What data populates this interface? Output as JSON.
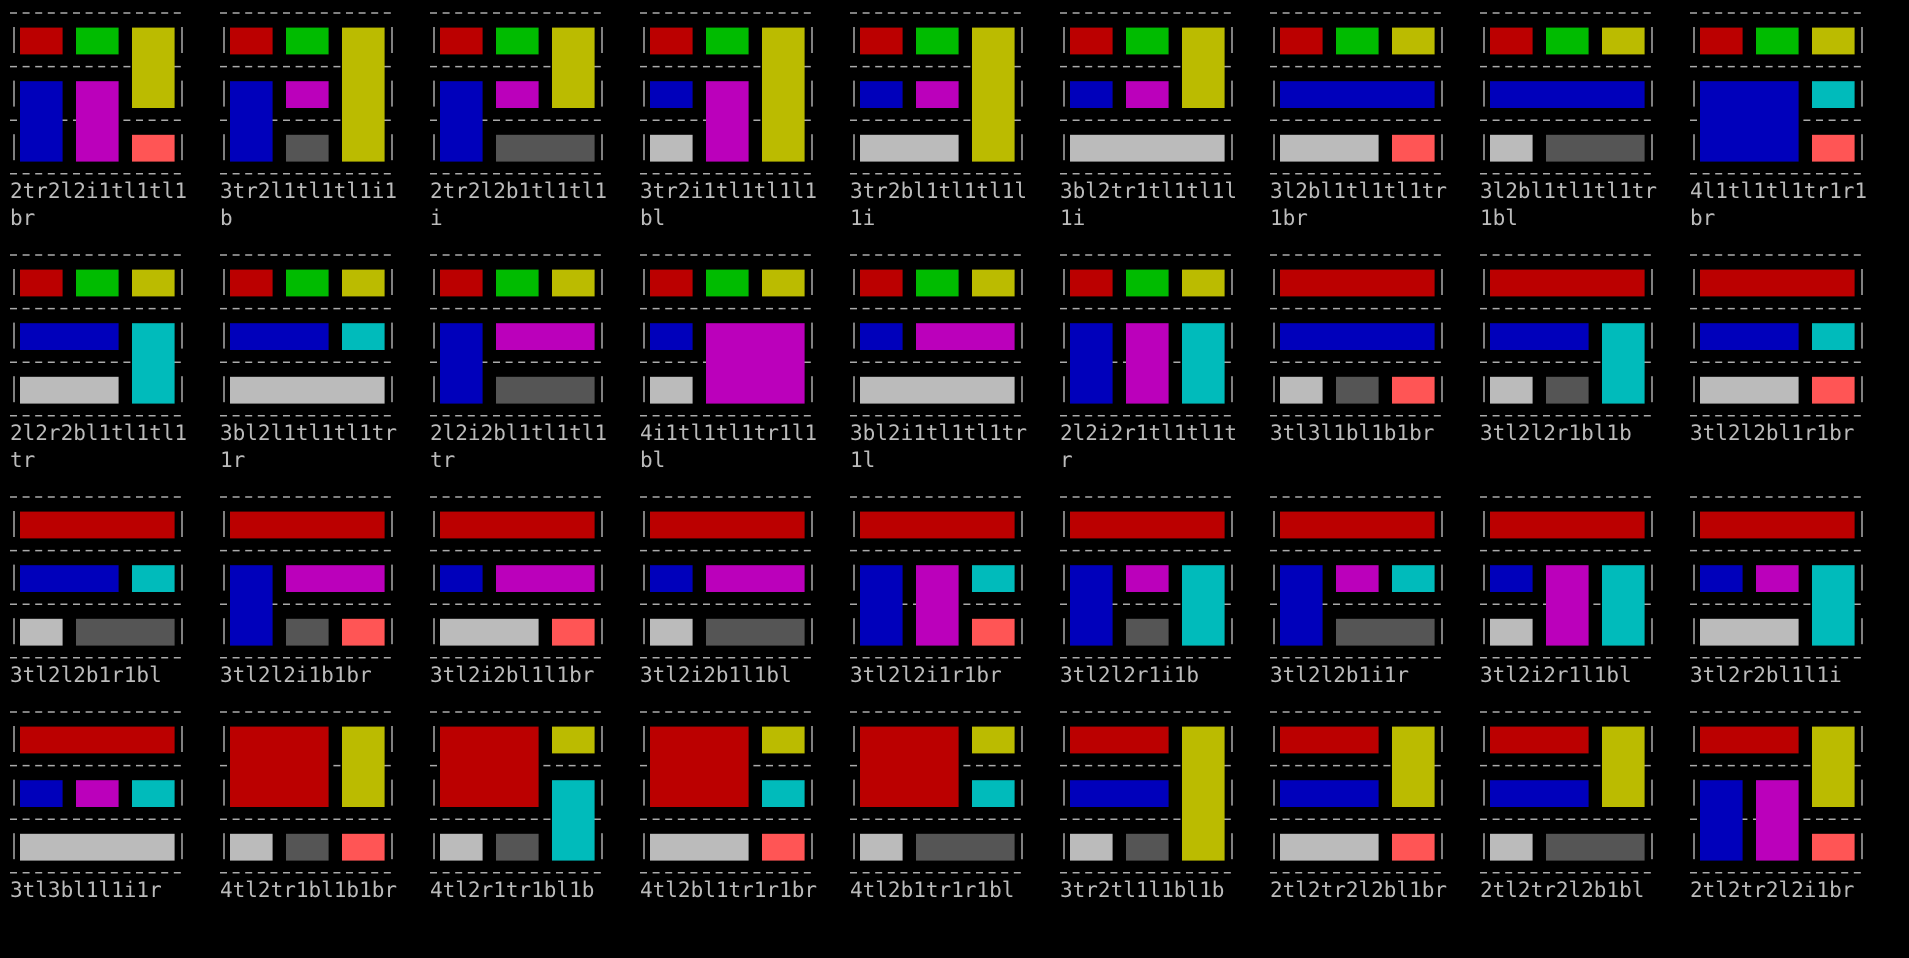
{
  "cells": [
    "2tr2l2i1tl1tl1br",
    "3tr2l1tl1tl1i1b",
    "2tr2l2b1tl1tl1i",
    "3tr2i1tl1tl1l1bl",
    "3tr2bl1tl1tl1l1i",
    "3bl2tr1tl1tl1l1i",
    "3l2bl1tl1tl1tr1br",
    "3l2bl1tl1tl1tr1bl",
    "4l1tl1tl1tr1r1br",
    "2l2r2bl1tl1tl1tr",
    "3bl2l1tl1tl1tr1r",
    "2l2i2bl1tl1tl1tr",
    "4i1tl1tl1tr1l1bl",
    "3bl2i1tl1tl1tr1l",
    "2l2i2r1tl1tl1tr",
    "3tl3l1bl1b1br",
    "3tl2l2r1bl1b",
    "3tl2l2bl1r1br",
    "3tl2l2b1r1bl",
    "3tl2l2i1b1br",
    "3tl2i2bl1l1br",
    "3tl2i2b1l1bl",
    "3tl2l2i1r1br",
    "3tl2l2r1i1b",
    "3tl2l2b1i1r",
    "3tl2i2r1l1bl",
    "3tl2r2bl1l1i",
    "3tl3bl1l1i1r",
    "4tl2tr1bl1b1br",
    "4tl2r1tr1bl1b",
    "4tl2bl1tr1r1br",
    "4tl2b1tr1r1bl",
    "3tr2tl1l1bl1b",
    "2tl2tr2l2bl1br",
    "2tl2tr2l2b1bl",
    "2tl2tr2l2i1br"
  ]
}
